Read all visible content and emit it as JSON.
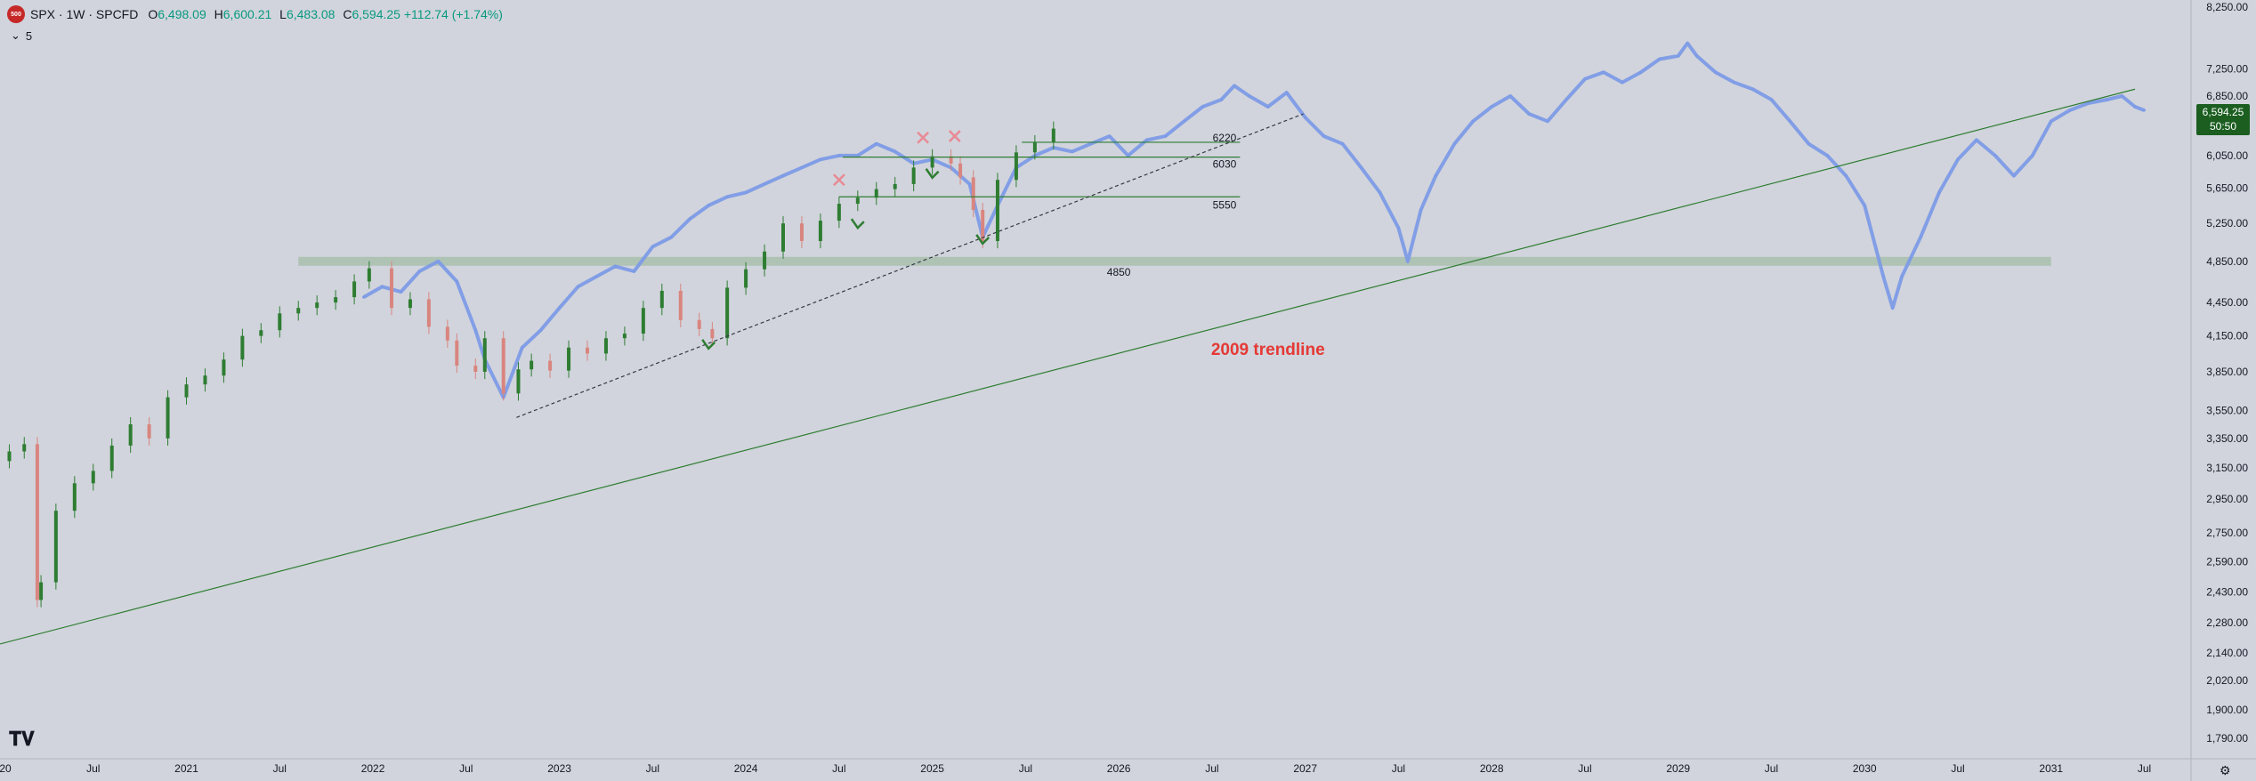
{
  "header": {
    "symbol_logo": "500",
    "symbol": "SPX · 1W · SPCFD",
    "ohlc": {
      "open_label": "O",
      "open": "6,498.09",
      "high_label": "H",
      "high": "6,600.21",
      "low_label": "L",
      "low": "6,483.08",
      "close_label": "C",
      "close": "6,594.25",
      "change": "+112.74 (+1.74%)"
    },
    "indicator_toggle_icon": "chevron-down-icon",
    "indicator_count": "5"
  },
  "price_badge": {
    "price": "6,594.25",
    "countdown": "50:50"
  },
  "colors": {
    "background": "#d1d4dc",
    "candle_up": "#2e7d32",
    "candle_down": "#d9857f",
    "overlay_series": "#7d9be6",
    "trendline": "#2e7d32",
    "zone": "#a9bfae",
    "annotation_red": "#e53935"
  },
  "chart_data": {
    "type": "line",
    "y_scale": "log",
    "y_axis": {
      "ticks": [
        "8,250.00",
        "7,250.00",
        "6,850.00",
        "6,050.00",
        "5,650.00",
        "5,250.00",
        "4,850.00",
        "4,450.00",
        "4,150.00",
        "3,850.00",
        "3,550.00",
        "3,350.00",
        "3,150.00",
        "2,950.00",
        "2,750.00",
        "2,590.00",
        "2,430.00",
        "2,280.00",
        "2,140.00",
        "2,020.00",
        "1,900.00",
        "1,790.00"
      ]
    },
    "x_axis": {
      "ticks": [
        "20",
        "Jul",
        "2021",
        "Jul",
        "2022",
        "Jul",
        "2023",
        "Jul",
        "2024",
        "Jul",
        "2025",
        "Jul",
        "2026",
        "Jul",
        "2027",
        "Jul",
        "2028",
        "Jul",
        "2029",
        "Jul",
        "2030",
        "Jul",
        "2031",
        "Jul"
      ],
      "start_year": 2020.0,
      "end_year": 2031.55
    },
    "series": [
      {
        "kind": "candles",
        "x": [
          2020.05,
          2020.13,
          2020.2,
          2020.22,
          2020.3,
          2020.4,
          2020.5,
          2020.6,
          2020.7,
          2020.8,
          2020.9,
          2021.0,
          2021.1,
          2021.2,
          2021.3,
          2021.4,
          2021.5,
          2021.6,
          2021.7,
          2021.8,
          2021.9,
          2021.98,
          2022.1,
          2022.2,
          2022.3,
          2022.4,
          2022.45,
          2022.55,
          2022.6,
          2022.7,
          2022.78,
          2022.85,
          2022.95,
          2023.05,
          2023.15,
          2023.25,
          2023.35,
          2023.45,
          2023.55,
          2023.65,
          2023.75,
          2023.82,
          2023.9,
          2024.0,
          2024.1,
          2024.2,
          2024.3,
          2024.4,
          2024.5,
          2024.6,
          2024.7,
          2024.8,
          2024.9,
          2025.0,
          2025.1,
          2025.15,
          2025.22,
          2025.27,
          2025.35,
          2025.45,
          2025.55,
          2025.65
        ],
        "values": [
          3260,
          3310,
          2390,
          2480,
          2880,
          3050,
          3130,
          3300,
          3450,
          3350,
          3650,
          3750,
          3820,
          3950,
          4150,
          4200,
          4350,
          4400,
          4450,
          4500,
          4650,
          4780,
          4400,
          4480,
          4230,
          4110,
          3900,
          3850,
          4130,
          3680,
          3870,
          3940,
          3860,
          4050,
          4000,
          4130,
          4170,
          4400,
          4560,
          4290,
          4210,
          4130,
          4590,
          4770,
          4950,
          5250,
          5060,
          5280,
          5470,
          5540,
          5640,
          5700,
          5900,
          6040,
          5950,
          5780,
          5400,
          5060,
          5750,
          6090,
          6220,
          6400
        ]
      },
      {
        "kind": "overlay",
        "x": [
          2021.95,
          2022.05,
          2022.15,
          2022.25,
          2022.35,
          2022.45,
          2022.55,
          2022.6,
          2022.7,
          2022.8,
          2022.9,
          2023.0,
          2023.1,
          2023.2,
          2023.3,
          2023.4,
          2023.5,
          2023.6,
          2023.7,
          2023.8,
          2023.9,
          2024.0,
          2024.1,
          2024.2,
          2024.3,
          2024.4,
          2024.5,
          2024.6,
          2024.7,
          2024.8,
          2024.9,
          2025.0,
          2025.1,
          2025.2,
          2025.27,
          2025.35,
          2025.45,
          2025.55,
          2025.65,
          2025.75,
          2025.85,
          2025.95,
          2026.05,
          2026.15,
          2026.25,
          2026.35,
          2026.45,
          2026.55,
          2026.62,
          2026.7,
          2026.8,
          2026.9,
          2027.0,
          2027.1,
          2027.2,
          2027.3,
          2027.4,
          2027.5,
          2027.55,
          2027.62,
          2027.7,
          2027.8,
          2027.9,
          2028.0,
          2028.1,
          2028.2,
          2028.3,
          2028.4,
          2028.5,
          2028.6,
          2028.7,
          2028.8,
          2028.9,
          2029.0,
          2029.05,
          2029.1,
          2029.2,
          2029.3,
          2029.4,
          2029.5,
          2029.6,
          2029.7,
          2029.8,
          2029.9,
          2030.0,
          2030.1,
          2030.15,
          2030.2,
          2030.3,
          2030.4,
          2030.5,
          2030.6,
          2030.7,
          2030.8,
          2030.9,
          2031.0,
          2031.1,
          2031.2,
          2031.3,
          2031.38,
          2031.45,
          2031.5
        ],
        "values": [
          4500,
          4600,
          4550,
          4750,
          4850,
          4650,
          4200,
          3950,
          3650,
          4050,
          4200,
          4400,
          4600,
          4700,
          4800,
          4750,
          5000,
          5100,
          5300,
          5450,
          5550,
          5600,
          5700,
          5800,
          5900,
          6000,
          6050,
          6050,
          6200,
          6100,
          5950,
          6000,
          5900,
          5700,
          5100,
          5450,
          5900,
          6050,
          6150,
          6100,
          6200,
          6300,
          6050,
          6250,
          6300,
          6500,
          6700,
          6800,
          7000,
          6850,
          6700,
          6900,
          6550,
          6300,
          6200,
          5900,
          5600,
          5200,
          4850,
          5400,
          5800,
          6200,
          6500,
          6700,
          6850,
          6600,
          6500,
          6800,
          7100,
          7200,
          7050,
          7200,
          7400,
          7450,
          7650,
          7450,
          7200,
          7050,
          6950,
          6800,
          6500,
          6200,
          6050,
          5800,
          5450,
          4700,
          4400,
          4700,
          5100,
          5600,
          6000,
          6250,
          6050,
          5800,
          6050,
          6500,
          6650,
          6750,
          6800,
          6850,
          6700,
          6650
        ]
      }
    ],
    "horizontal_levels": [
      {
        "label": "6220",
        "value": 6220
      },
      {
        "label": "6030",
        "value": 6030
      },
      {
        "label": "5550",
        "value": 5550
      },
      {
        "label": "4850",
        "value": 4850
      }
    ],
    "trendlines": [
      {
        "name": "2009 trendline",
        "style": "solid",
        "from": [
          2020.0,
          2180
        ],
        "to": [
          2031.45,
          6950
        ]
      },
      {
        "name": "",
        "style": "dashed",
        "from": [
          2022.77,
          3500
        ],
        "to": [
          2026.99,
          6600
        ]
      }
    ],
    "markers": [
      {
        "type": "x",
        "color": "red",
        "x": 2024.5,
        "value": 5750
      },
      {
        "type": "x",
        "color": "red",
        "x": 2024.95,
        "value": 6280
      },
      {
        "type": "x",
        "color": "red",
        "x": 2025.12,
        "value": 6300
      },
      {
        "type": "check",
        "color": "green",
        "x": 2024.6,
        "value": 5250
      },
      {
        "type": "check",
        "color": "green",
        "x": 2025.0,
        "value": 5830
      },
      {
        "type": "check",
        "color": "green",
        "x": 2025.27,
        "value": 5080
      },
      {
        "type": "check",
        "color": "green",
        "x": 2023.8,
        "value": 4080
      }
    ],
    "annotations": [
      {
        "text": "2009 trendline",
        "x": 2026.8,
        "value": 3990
      }
    ],
    "grid": false
  }
}
